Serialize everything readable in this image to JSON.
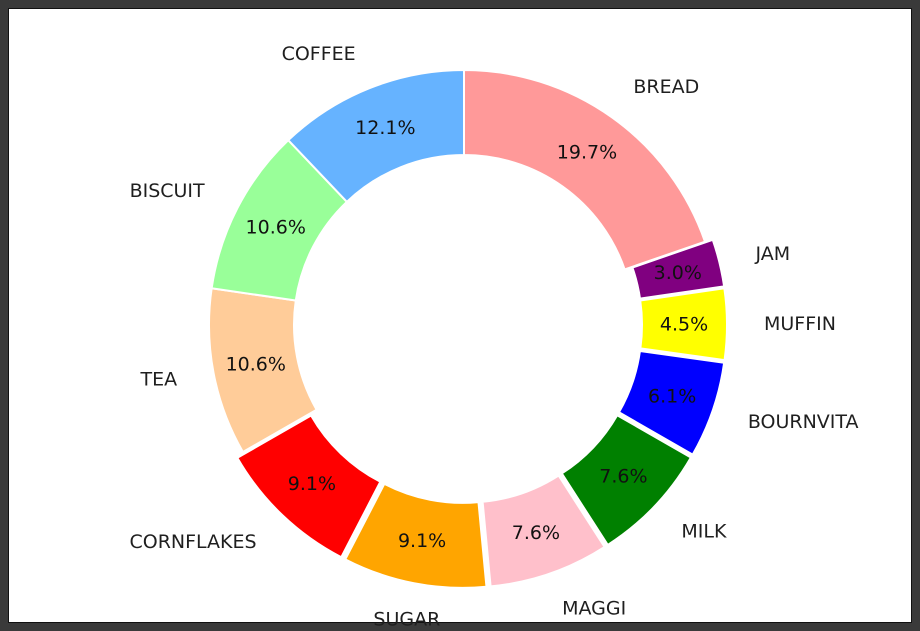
{
  "chart_data": {
    "type": "pie",
    "donut": true,
    "start_angle_deg": 90,
    "direction": "clockwise",
    "title": "",
    "legend": "none",
    "categories": [
      "BREAD",
      "JAM",
      "MUFFIN",
      "BOURNVITA",
      "MILK",
      "MAGGI",
      "SUGAR",
      "CORNFLAKES",
      "TEA",
      "BISCUIT",
      "COFFEE"
    ],
    "values": [
      19.7,
      3.0,
      4.5,
      6.1,
      7.6,
      7.6,
      9.1,
      9.1,
      10.6,
      10.6,
      12.1
    ],
    "labels_pct": [
      "19.7%",
      "3.0%",
      "4.5%",
      "6.1%",
      "7.6%",
      "7.6%",
      "9.1%",
      "9.1%",
      "10.6%",
      "10.6%",
      "12.1%"
    ],
    "colors": [
      "#ff9999",
      "#800080",
      "#ffff00",
      "#0000ff",
      "#008000",
      "#ffc0cb",
      "#ffa500",
      "#ff0000",
      "#ffcc99",
      "#99ff99",
      "#66b3ff"
    ],
    "exploded": [
      false,
      true,
      true,
      true,
      true,
      true,
      true,
      true,
      false,
      false,
      false
    ]
  }
}
